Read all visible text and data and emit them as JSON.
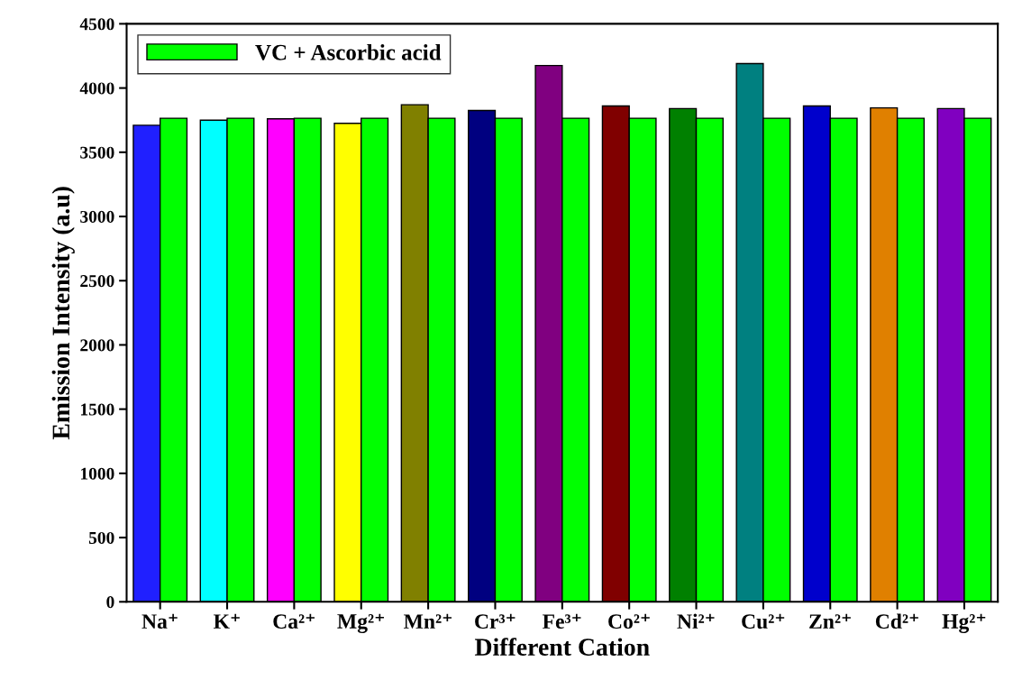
{
  "chart_data": {
    "type": "bar",
    "xlabel": "Different Cation",
    "ylabel": "Emission Intensity (a.u)",
    "categories": [
      "Na⁺",
      "K⁺",
      "Ca²⁺",
      "Mg²⁺",
      "Mn²⁺",
      "Cr³⁺",
      "Fe³⁺",
      "Co²⁺",
      "Ni²⁺",
      "Cu²⁺",
      "Zn²⁺",
      "Cd²⁺",
      "Hg²⁺"
    ],
    "series": [
      {
        "colors": [
          "#2020ff",
          "#00ffff",
          "#ff00ff",
          "#ffff00",
          "#808000",
          "#000080",
          "#800080",
          "#800000",
          "#008000",
          "#008080",
          "#0000cc",
          "#e08000",
          "#8000c0"
        ],
        "values": [
          3710,
          3750,
          3760,
          3725,
          3870,
          3825,
          4175,
          3860,
          3840,
          4190,
          3860,
          3845,
          3840
        ]
      },
      {
        "name": "VC + Ascorbic acid",
        "color": "#00ff00",
        "values": [
          3765,
          3765,
          3765,
          3765,
          3765,
          3765,
          3765,
          3765,
          3765,
          3765,
          3765,
          3765,
          3765
        ]
      }
    ],
    "ylim": [
      0,
      4500
    ],
    "yticks": [
      0,
      500,
      1000,
      1500,
      2000,
      2500,
      3000,
      3500,
      4000,
      4500
    ],
    "grid": false,
    "legend": "top left"
  }
}
